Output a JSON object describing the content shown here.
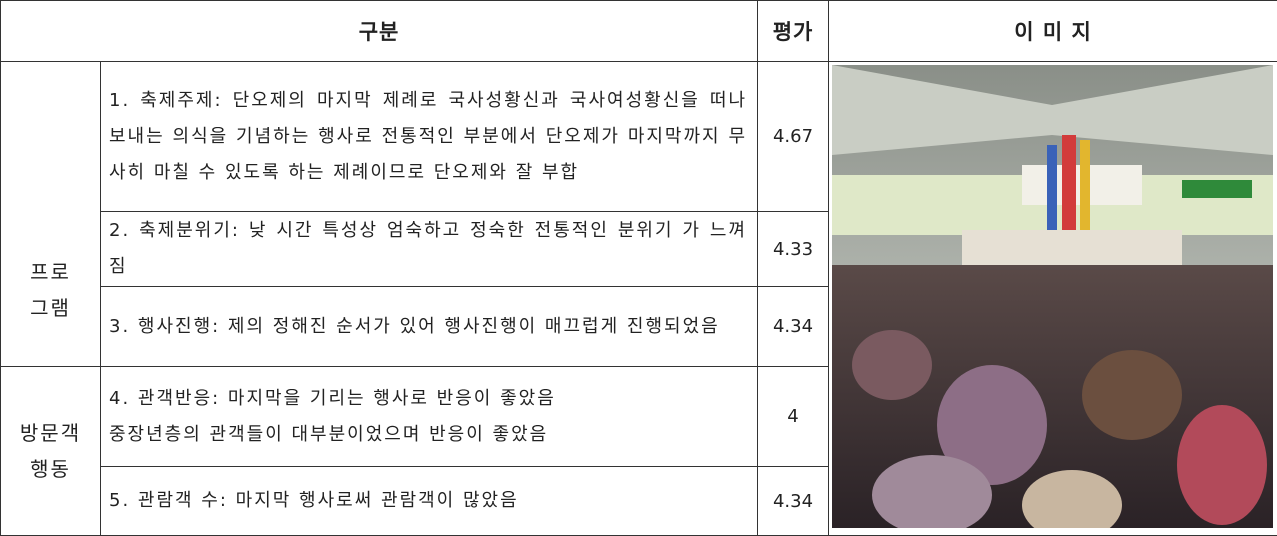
{
  "table": {
    "header": [
      "구분",
      "평가",
      "이 미 지"
    ],
    "groups": [
      {
        "label": "프로\n그램",
        "rows": [
          {
            "text": "1. 축제주제: 단오제의 마지막 제례로 국사성황신과 국사여성황신을 떠나보내는 의식을 기념하는 행사로 전통적인 부분에서 단오제가 마지막까지 무사히 마칠 수 있도록 하는 제례이므로 단오제와 잘 부합",
            "score": "4.67"
          },
          {
            "text": "2. 축제분위기: 낮 시간 특성상 엄숙하고 정숙한 전통적인 분위기 가 느껴짐",
            "score": "4.33"
          },
          {
            "text": "3. 행사진행: 제의 정해진 순서가 있어 행사진행이 매끄럽게 진행되었음",
            "score": "4.34"
          }
        ]
      },
      {
        "label": "방문객\n행동",
        "rows": [
          {
            "text": "4. 관객반응: 마지막을 기리는 행사로 반응이 좋았음\n중장년층의 관객들이 대부분이었으며 반응이 좋았음",
            "score": "4"
          },
          {
            "text": "5. 관람객 수: 마지막 행사로써 관람객이 많았음",
            "score": "4.34"
          }
        ]
      }
    ]
  }
}
